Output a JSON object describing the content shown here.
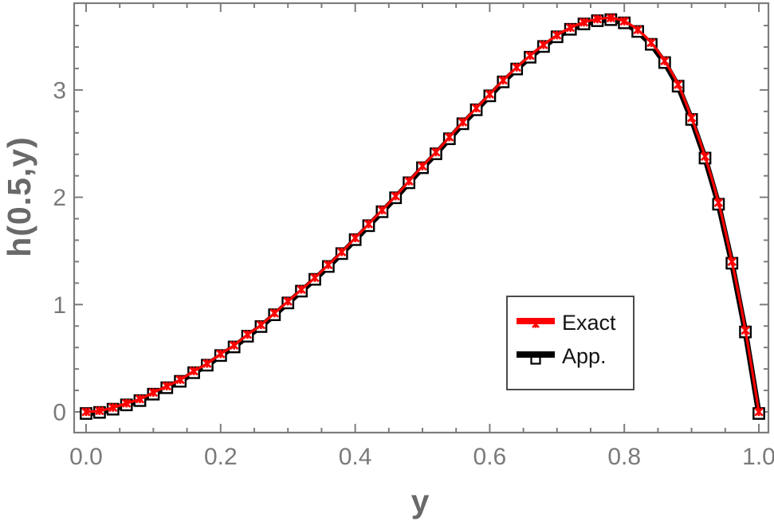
{
  "chart_data": {
    "type": "line",
    "title": "",
    "xlabel": "y",
    "ylabel": "h(0.5,y)",
    "xlim": [
      -0.018,
      1.013
    ],
    "ylim": [
      -0.19,
      3.81
    ],
    "grid": false,
    "legend_position": "inside-right",
    "x_ticks": {
      "major_values": [
        0,
        0.2,
        0.4,
        0.6,
        0.8,
        1.0
      ],
      "major_labels": [
        "0.0",
        "0.2",
        "0.4",
        "0.6",
        "0.8",
        "1.0"
      ],
      "minor_step": 0.05
    },
    "y_ticks": {
      "major_values": [
        0,
        1,
        2,
        3
      ],
      "major_labels": [
        "0",
        "1",
        "2",
        "3"
      ],
      "minor_step": 0.2
    },
    "x": [
      0,
      0.02,
      0.04,
      0.06,
      0.08,
      0.1,
      0.12,
      0.14,
      0.16,
      0.18,
      0.2,
      0.22,
      0.24,
      0.26,
      0.28,
      0.3,
      0.32,
      0.34,
      0.36,
      0.38,
      0.4,
      0.42,
      0.44,
      0.46,
      0.48,
      0.5,
      0.52,
      0.54,
      0.56,
      0.58,
      0.6,
      0.62,
      0.64,
      0.66,
      0.68,
      0.7,
      0.72,
      0.74,
      0.76,
      0.78,
      0.8,
      0.82,
      0.84,
      0.86,
      0.88,
      0.9,
      0.92,
      0.94,
      0.96,
      0.98,
      1
    ],
    "series": [
      {
        "name": "Exact",
        "color": "#ff0000",
        "marker": "x-star",
        "line_width": 3.2,
        "values": [
          0,
          0.01,
          0.04,
          0.08,
          0.12,
          0.18,
          0.24,
          0.3,
          0.38,
          0.45,
          0.54,
          0.62,
          0.72,
          0.81,
          0.92,
          1.03,
          1.14,
          1.25,
          1.37,
          1.49,
          1.62,
          1.75,
          1.88,
          2.01,
          2.15,
          2.29,
          2.42,
          2.56,
          2.7,
          2.83,
          2.96,
          3.09,
          3.21,
          3.32,
          3.42,
          3.51,
          3.58,
          3.63,
          3.66,
          3.67,
          3.64,
          3.56,
          3.44,
          3.27,
          3.05,
          2.74,
          2.38,
          1.95,
          1.4,
          0.76,
          0
        ]
      },
      {
        "name": "App.",
        "color": "#000000",
        "marker": "open-square",
        "line_width": 7,
        "values": [
          0,
          0.01,
          0.04,
          0.08,
          0.12,
          0.18,
          0.24,
          0.3,
          0.38,
          0.45,
          0.54,
          0.62,
          0.72,
          0.81,
          0.92,
          1.03,
          1.14,
          1.25,
          1.37,
          1.49,
          1.62,
          1.75,
          1.88,
          2.01,
          2.15,
          2.29,
          2.42,
          2.56,
          2.7,
          2.83,
          2.96,
          3.09,
          3.21,
          3.32,
          3.42,
          3.51,
          3.58,
          3.63,
          3.66,
          3.67,
          3.64,
          3.56,
          3.44,
          3.27,
          3.05,
          2.74,
          2.38,
          1.95,
          1.4,
          0.76,
          0
        ]
      }
    ]
  },
  "style": {
    "frame_color": "#7d7d7d",
    "tick_label_color": "#7a7a7a",
    "axis_title_color": "#696969",
    "legend_border_color": "#4b4b4b",
    "background": "#ffffff"
  }
}
